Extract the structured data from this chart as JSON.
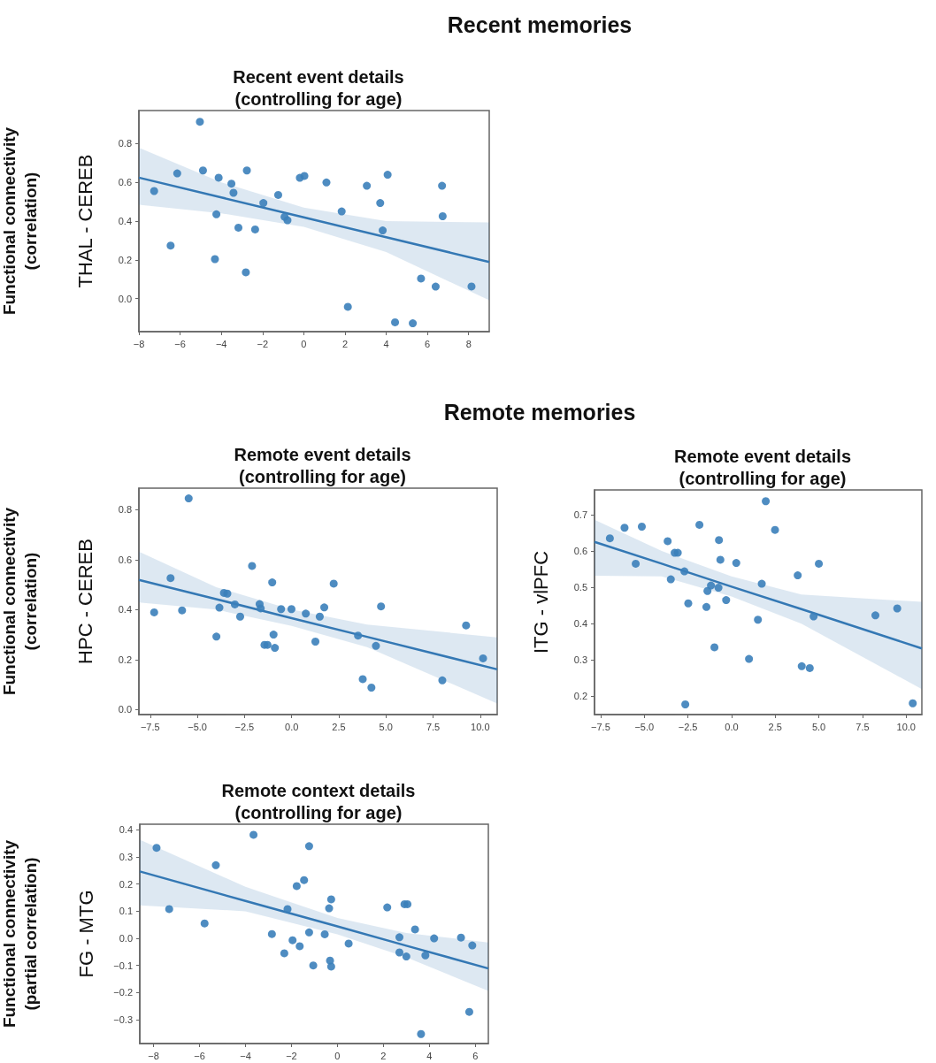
{
  "chart_data": [
    {
      "type": "scatter",
      "title": "Recent event details\n(controlling for age)",
      "ylabel": "THAL - CEREB",
      "annotations": [
        "Recent memories",
        "Functional connectivity\n(correlation)"
      ],
      "xlim": [
        -8,
        9
      ],
      "ylim": [
        -0.17,
        0.97
      ],
      "xticks": [
        {
          "value": -8,
          "label": "−8"
        },
        {
          "value": -6,
          "label": "−6"
        },
        {
          "value": -4,
          "label": "−4"
        },
        {
          "value": -2,
          "label": "−2"
        },
        0,
        2,
        4,
        6,
        8
      ],
      "yticks": [
        {
          "value": 0,
          "label": "0.0"
        },
        0.2,
        0.4,
        0.6,
        0.8
      ],
      "series": [
        {
          "marker": "circle",
          "color": "#3b80ba",
          "x": [
            -7.26,
            -6.46,
            -6.14,
            -5.04,
            -4.89,
            -4.24,
            -4.31,
            -4.13,
            -3.51,
            -3.41,
            -3.17,
            -2.81,
            -2.76,
            -2.36,
            -1.96,
            -1.24,
            -0.93,
            -0.79,
            -0.19,
            0.03,
            1.1,
            1.84,
            2.14,
            3.06,
            3.71,
            3.83,
            4.07,
            4.43,
            5.29,
            5.69,
            6.4,
            6.71,
            6.74,
            8.14
          ],
          "values": [
            0.555,
            0.274,
            0.646,
            0.912,
            0.661,
            0.435,
            0.204,
            0.624,
            0.593,
            0.546,
            0.366,
            0.136,
            0.661,
            0.357,
            0.493,
            0.535,
            0.422,
            0.404,
            0.623,
            0.633,
            0.599,
            0.45,
            -0.042,
            0.582,
            0.493,
            0.352,
            0.639,
            -0.122,
            -0.127,
            0.104,
            0.062,
            0.582,
            0.425,
            0.063
          ]
        },
        {
          "type": "line",
          "marker": "none",
          "color": "#3478b4",
          "x": [
            -8,
            -4,
            0,
            4,
            9
          ],
          "values": [
            0.624,
            0.522,
            0.419,
            0.317,
            0.189
          ],
          "lower": [
            0.484,
            0.44,
            0.37,
            0.24,
            -0.008
          ],
          "upper": [
            0.779,
            0.6,
            0.47,
            0.4,
            0.393
          ]
        }
      ]
    },
    {
      "type": "scatter",
      "title": "Remote event details\n(controlling for age)",
      "ylabel": "HPC - CEREB",
      "annotations": [
        "Remote memories",
        "Functional connectivity\n(correlation)"
      ],
      "xlim": [
        -8.1,
        10.9
      ],
      "ylim": [
        -0.02,
        0.886
      ],
      "xticks": [
        {
          "value": -7.5,
          "label": "−7.5"
        },
        {
          "value": -5,
          "label": "−5.0"
        },
        {
          "value": -2.5,
          "label": "−2.5"
        },
        {
          "value": 0,
          "label": "0.0"
        },
        2.5,
        {
          "value": 5,
          "label": "5.0"
        },
        7.5,
        {
          "value": 10,
          "label": "10.0"
        }
      ],
      "yticks": [
        {
          "value": 0,
          "label": "0.0"
        },
        0.2,
        0.4,
        0.6,
        0.8
      ],
      "series": [
        {
          "marker": "circle",
          "color": "#3b80ba",
          "x": [
            -7.29,
            -6.42,
            -5.81,
            -5.46,
            -3.99,
            -3.83,
            -3.59,
            -3.41,
            -3.01,
            -2.73,
            -2.1,
            -1.7,
            -1.64,
            -1.44,
            -1.28,
            -1.03,
            -0.96,
            -0.89,
            -0.56,
            -0.01,
            0.75,
            1.26,
            1.49,
            1.73,
            2.23,
            3.52,
            3.77,
            4.23,
            4.47,
            4.74,
            7.99,
            9.25,
            10.15
          ],
          "values": [
            0.389,
            0.526,
            0.397,
            0.845,
            0.292,
            0.408,
            0.467,
            0.464,
            0.421,
            0.372,
            0.575,
            0.422,
            0.405,
            0.259,
            0.259,
            0.509,
            0.3,
            0.247,
            0.402,
            0.402,
            0.384,
            0.272,
            0.372,
            0.409,
            0.504,
            0.296,
            0.122,
            0.088,
            0.255,
            0.413,
            0.117,
            0.337,
            0.205
          ]
        },
        {
          "type": "line",
          "marker": "none",
          "color": "#3478b4",
          "x": [
            -8.1,
            -4,
            0,
            4,
            10.9
          ],
          "values": [
            0.519,
            0.442,
            0.366,
            0.291,
            0.161
          ],
          "lower": [
            0.429,
            0.4,
            0.335,
            0.25,
            0.024
          ],
          "upper": [
            0.632,
            0.49,
            0.4,
            0.34,
            0.289
          ]
        }
      ]
    },
    {
      "type": "scatter",
      "title": "Remote event details\n(controlling for age)",
      "ylabel": "ITG - vlPFC",
      "xlim": [
        -7.85,
        10.9
      ],
      "ylim": [
        0.15,
        0.768
      ],
      "xticks": [
        {
          "value": -7.5,
          "label": "−7.5"
        },
        {
          "value": -5,
          "label": "−5.0"
        },
        {
          "value": -2.5,
          "label": "−2.5"
        },
        {
          "value": 0,
          "label": "0.0"
        },
        2.5,
        {
          "value": 5,
          "label": "5.0"
        },
        7.5,
        {
          "value": 10,
          "label": "10.0"
        }
      ],
      "yticks": [
        0.2,
        0.3,
        0.4,
        0.5,
        0.6,
        0.7
      ],
      "series": [
        {
          "marker": "circle",
          "color": "#3b80ba",
          "x": [
            -6.97,
            -6.13,
            -5.49,
            -5.14,
            -3.66,
            -3.48,
            -3.26,
            -3.08,
            -2.7,
            -2.48,
            -2.65,
            -1.84,
            -1.44,
            -1.38,
            -1.18,
            -0.98,
            -0.75,
            -0.72,
            -0.64,
            -0.31,
            0.27,
            1.0,
            1.51,
            1.73,
            1.96,
            2.49,
            3.79,
            4.02,
            4.48,
            4.7,
            5.0,
            8.24,
            9.49,
            10.38
          ],
          "values": [
            0.635,
            0.664,
            0.565,
            0.667,
            0.627,
            0.522,
            0.595,
            0.595,
            0.544,
            0.456,
            0.178,
            0.672,
            0.446,
            0.49,
            0.505,
            0.335,
            0.499,
            0.63,
            0.576,
            0.465,
            0.567,
            0.303,
            0.411,
            0.51,
            0.737,
            0.658,
            0.533,
            0.283,
            0.278,
            0.42,
            0.565,
            0.423,
            0.442,
            0.181
          ]
        },
        {
          "type": "line",
          "marker": "none",
          "color": "#3478b4",
          "x": [
            -7.85,
            -4,
            0,
            4,
            10.9
          ],
          "values": [
            0.625,
            0.565,
            0.502,
            0.44,
            0.332
          ],
          "lower": [
            0.532,
            0.53,
            0.475,
            0.4,
            0.22
          ],
          "upper": [
            0.686,
            0.6,
            0.53,
            0.48,
            0.46
          ]
        }
      ]
    },
    {
      "type": "scatter",
      "title": "Remote context details\n(controlling for age)",
      "ylabel": "FG - MTG",
      "annotations": [
        "Functional connectivity\n(partial correlation)"
      ],
      "xlim": [
        -8.6,
        6.57
      ],
      "ylim": [
        -0.388,
        0.421
      ],
      "xticks": [
        {
          "value": -8,
          "label": "−8"
        },
        {
          "value": -6,
          "label": "−6"
        },
        {
          "value": -4,
          "label": "−4"
        },
        {
          "value": -2,
          "label": "−2"
        },
        0,
        2,
        4,
        6
      ],
      "yticks": [
        {
          "value": -0.3,
          "label": "−0.3"
        },
        {
          "value": -0.2,
          "label": "−0.2"
        },
        {
          "value": -0.1,
          "label": "−0.1"
        },
        {
          "value": 0,
          "label": "0.0"
        },
        0.1,
        0.2,
        0.3,
        0.4
      ],
      "series": [
        {
          "marker": "circle",
          "color": "#3b80ba",
          "x": [
            -7.87,
            -7.32,
            -5.78,
            -5.29,
            -3.65,
            -2.85,
            -2.31,
            -2.17,
            -1.95,
            -1.77,
            -1.64,
            -1.45,
            -1.23,
            -1.23,
            -1.05,
            -0.55,
            -0.36,
            -0.32,
            -0.27,
            -0.27,
            0.49,
            2.17,
            2.7,
            2.7,
            2.92,
            3.05,
            3.0,
            3.38,
            3.64,
            3.83,
            4.21,
            5.38,
            5.74,
            5.87
          ],
          "values": [
            0.334,
            0.108,
            0.055,
            0.27,
            0.382,
            0.016,
            -0.055,
            0.108,
            -0.007,
            0.193,
            -0.029,
            0.215,
            0.34,
            0.022,
            -0.1,
            0.015,
            0.111,
            -0.082,
            0.144,
            -0.104,
            -0.019,
            0.114,
            0.004,
            -0.052,
            0.126,
            0.126,
            -0.067,
            0.033,
            -0.353,
            -0.063,
            0.0,
            0.003,
            -0.271,
            -0.026
          ]
        },
        {
          "type": "line",
          "marker": "none",
          "color": "#3478b4",
          "x": [
            -8.6,
            -4,
            0,
            3,
            6.57
          ],
          "values": [
            0.247,
            0.138,
            0.044,
            -0.027,
            -0.111
          ],
          "lower": [
            0.122,
            0.1,
            0.015,
            -0.07,
            -0.194
          ],
          "upper": [
            0.364,
            0.19,
            0.075,
            0.02,
            -0.015
          ]
        }
      ]
    }
  ]
}
